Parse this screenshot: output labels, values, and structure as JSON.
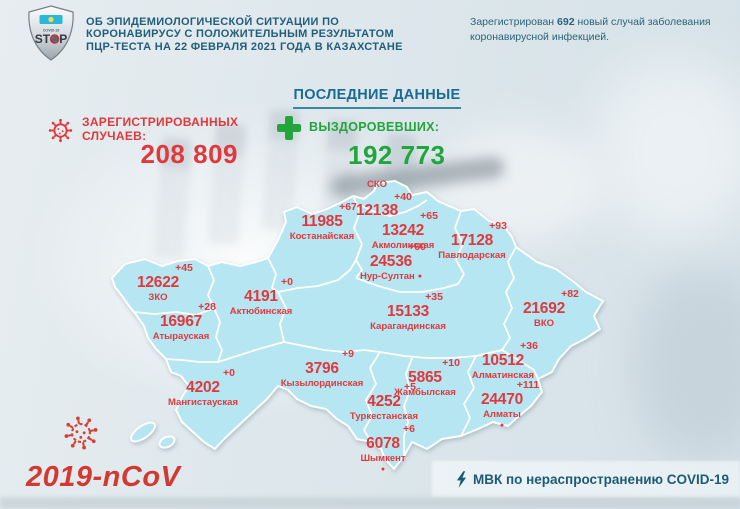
{
  "logo": {
    "covid_text": "COVID-19",
    "stop_text": "STOP"
  },
  "header": {
    "title_lines": [
      "ОБ ЭПИДЕМИОЛОГИЧЕСКОЙ СИТУАЦИИ ПО",
      "КОРОНАВИРУСУ С ПОЛОЖИТЕЛЬНЫМ РЕЗУЛЬТАТОМ",
      "ПЦР-ТЕСТА НА 22 ФЕВРАЛЯ 2021 ГОДА В КАЗАХСТАНЕ"
    ],
    "daily_note": {
      "prefix": "Зарегистрирован ",
      "count": "692",
      "suffix": " новый случай заболевания коронавирусной инфекцией."
    }
  },
  "latest": {
    "heading": "ПОСЛЕДНИЕ ДАННЫЕ",
    "registered": {
      "label_line1": "ЗАРЕГИСТРИРОВАННЫХ",
      "label_line2": "СЛУЧАЕВ:",
      "value": "208 809"
    },
    "recovered": {
      "label": "ВЫЗДОРОВЕВШИХ:",
      "value": "192 773"
    }
  },
  "map": {
    "regions": [
      {
        "id": "sko",
        "name": "СКО",
        "value": "12138",
        "delta": "+40"
      },
      {
        "id": "kostanay",
        "name": "Костанайская",
        "value": "11985",
        "delta": "+67"
      },
      {
        "id": "akmola",
        "name": "Акмолинская",
        "value": "13242",
        "delta": "+65"
      },
      {
        "id": "pavlodar",
        "name": "Павлодарская",
        "value": "17128",
        "delta": "+93"
      },
      {
        "id": "nursultan",
        "name": "Нур-Султан",
        "value": "24536",
        "delta": "+60"
      },
      {
        "id": "zko",
        "name": "ЗКО",
        "value": "12622",
        "delta": "+45"
      },
      {
        "id": "aktobe",
        "name": "Актюбинская",
        "value": "4191",
        "delta": "+0"
      },
      {
        "id": "atyrau",
        "name": "Атырауская",
        "value": "16967",
        "delta": "+28"
      },
      {
        "id": "karaganda",
        "name": "Карагандинская",
        "value": "15133",
        "delta": "+35"
      },
      {
        "id": "vko",
        "name": "ВКО",
        "value": "21692",
        "delta": "+82"
      },
      {
        "id": "kyzylorda",
        "name": "Кызылординская",
        "value": "3796",
        "delta": "+9"
      },
      {
        "id": "mangystau",
        "name": "Мангистауская",
        "value": "4202",
        "delta": "+0"
      },
      {
        "id": "zhambyl",
        "name": "Жамбылская",
        "value": "5865",
        "delta": "+10"
      },
      {
        "id": "almaty_region",
        "name": "Алматинская",
        "value": "10512",
        "delta": "+36"
      },
      {
        "id": "turkestan",
        "name": "Туркестанская",
        "value": "4252",
        "delta": "+5"
      },
      {
        "id": "almaty_city",
        "name": "Алматы",
        "value": "24470",
        "delta": "+111"
      },
      {
        "id": "shymkent",
        "name": "Шымкент",
        "value": "6078",
        "delta": "+6"
      }
    ]
  },
  "footer": {
    "virus_label": "2019-nCoV",
    "committee": "МВК по нераспространению COVID-19"
  },
  "colors": {
    "accent_red": "#e0393d",
    "accent_green": "#22a63c",
    "teal_title": "#225e7a",
    "blue_heading": "#186b91",
    "map_fill": "#b5e6f1",
    "map_border": "#ffffff"
  }
}
